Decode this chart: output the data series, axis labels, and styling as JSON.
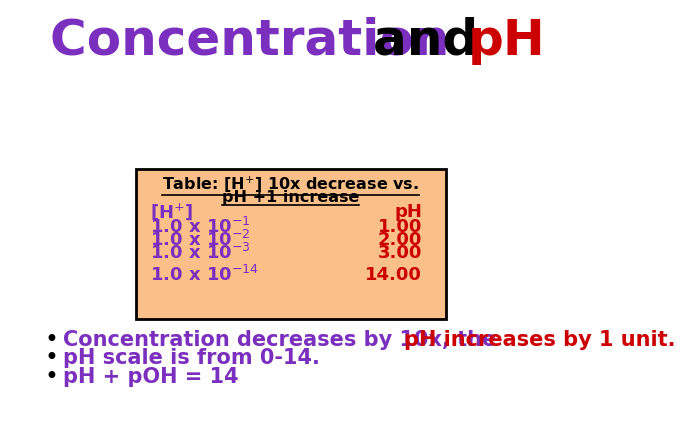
{
  "title_parts": [
    {
      "text": "Concentration ",
      "color": "#7B2FBE"
    },
    {
      "text": "and ",
      "color": "#000000"
    },
    {
      "text": "pH",
      "color": "#CC0000"
    }
  ],
  "title_fontsize": 36,
  "table_bg": "#FBBF8A",
  "table_border": "#000000",
  "table_color": "#7B2FBE",
  "table_ph_color": "#CC0000",
  "table_rows": [
    {
      "conc": "1.0 x 10$^{-1}$",
      "ph": "1.00"
    },
    {
      "conc": "1.0 x 10$^{-2}$",
      "ph": "2.00"
    },
    {
      "conc": "1.0 x 10$^{-3}$",
      "ph": "3.00"
    },
    {
      "conc": "1.0 x 10$^{-14}$",
      "ph": "14.00"
    }
  ],
  "bullet_lines": [
    {
      "parts": [
        {
          "text": "Concentration decreases by 10x, the ",
          "color": "#7B2FBE"
        },
        {
          "text": "pH increases by 1 unit.",
          "color": "#CC0000"
        }
      ]
    },
    {
      "parts": [
        {
          "text": "pH scale is from 0-14.",
          "color": "#7B2FBE"
        }
      ]
    },
    {
      "parts": [
        {
          "text": "pH + pOH = 14",
          "color": "#7B2FBE"
        }
      ]
    }
  ],
  "bullet_fontsize": 15,
  "bg_color": "#FFFFFF"
}
